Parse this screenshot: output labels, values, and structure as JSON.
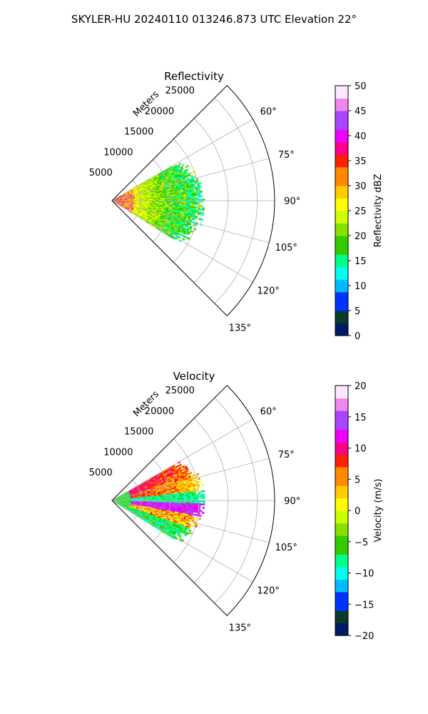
{
  "figure": {
    "suptitle": "SKYLER-HU  20240110  013246.873 UTC Elevation 22°"
  },
  "chart_data": [
    {
      "type": "heatmap",
      "subtype": "polar-sector",
      "title": "Reflectivity",
      "radial_label": "Meters",
      "range_ticks": [
        5000,
        10000,
        15000,
        20000,
        25000
      ],
      "range_tick_labels": [
        "5000",
        "10000",
        "15000",
        "20000",
        "25000"
      ],
      "range_max": 28000,
      "angle_range_deg": [
        45,
        135
      ],
      "angle_ticks": [
        60,
        75,
        90,
        105,
        120,
        135
      ],
      "angle_tick_labels": [
        "60°",
        "75°",
        "90°",
        "105°",
        "120°",
        "135°"
      ],
      "grid": true,
      "data_extent": {
        "range_max_approx": 16000,
        "azimuth_deg": [
          60,
          122
        ]
      },
      "colorbar": {
        "label": "Reflectivity dBZ",
        "min": 0,
        "max": 50,
        "ticks": [
          0,
          5,
          10,
          15,
          20,
          25,
          30,
          35,
          40,
          45,
          50
        ],
        "tick_labels": [
          "0",
          "5",
          "10",
          "15",
          "20",
          "25",
          "30",
          "35",
          "40",
          "45",
          "50"
        ],
        "colormap": [
          "#001a66",
          "#0a3a2a",
          "#0033ff",
          "#00bbff",
          "#00ffee",
          "#00ff88",
          "#33cc00",
          "#88e000",
          "#ccff00",
          "#ffff00",
          "#ffcc00",
          "#ff8800",
          "#ff2200",
          "#ff0088",
          "#ee00ff",
          "#aa44ff",
          "#ee88ee",
          "#ffe8ff"
        ]
      }
    },
    {
      "type": "heatmap",
      "subtype": "polar-sector",
      "title": "Velocity",
      "radial_label": "Meters",
      "range_ticks": [
        5000,
        10000,
        15000,
        20000,
        25000
      ],
      "range_tick_labels": [
        "5000",
        "10000",
        "15000",
        "20000",
        "25000"
      ],
      "range_max": 28000,
      "angle_range_deg": [
        45,
        135
      ],
      "angle_ticks": [
        60,
        75,
        90,
        105,
        120,
        135
      ],
      "angle_tick_labels": [
        "60°",
        "75°",
        "90°",
        "105°",
        "120°",
        "135°"
      ],
      "grid": true,
      "data_extent": {
        "range_max_approx": 16000,
        "azimuth_deg": [
          60,
          122
        ]
      },
      "colorbar": {
        "label": "Velocity (m/s)",
        "min": -20,
        "max": 20,
        "ticks": [
          -20,
          -15,
          -10,
          -5,
          0,
          5,
          10,
          15,
          20
        ],
        "tick_labels": [
          "−20",
          "−15",
          "−10",
          "−5",
          "0",
          "5",
          "10",
          "15",
          "20"
        ],
        "colormap": [
          "#001a66",
          "#0a3a2a",
          "#0033ff",
          "#00bbff",
          "#00ffee",
          "#00ff88",
          "#33cc00",
          "#88e000",
          "#ccff00",
          "#ffff00",
          "#ffcc00",
          "#ff8800",
          "#ff2200",
          "#ff0088",
          "#ee00ff",
          "#aa44ff",
          "#ee88ee",
          "#ffe8ff"
        ]
      }
    }
  ]
}
